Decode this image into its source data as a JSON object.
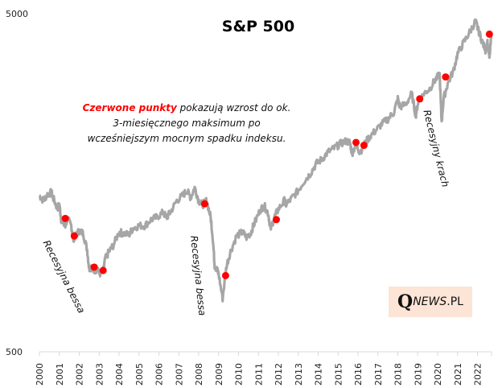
{
  "chart_data": {
    "type": "line",
    "title": "S&P 500",
    "xlabel": "",
    "ylabel": "",
    "yscale": "log",
    "ylim": [
      500,
      5000
    ],
    "y_ticks": [
      "5000",
      "500"
    ],
    "y_tick_values": [
      5000,
      500
    ],
    "xlim": [
      2000,
      2022.7
    ],
    "x_ticks": [
      "2000",
      "2001",
      "2002",
      "2003",
      "2004",
      "2005",
      "2006",
      "2007",
      "2008",
      "2009",
      "2010",
      "2011",
      "2012",
      "2013",
      "2014",
      "2015",
      "2016",
      "2017",
      "2018",
      "2019",
      "2020",
      "2021",
      "2022"
    ],
    "grid": false,
    "line_color": "#a6a6a6",
    "marker_color": "#ff0000",
    "series": [
      {
        "name": "S&P 500",
        "x": [
          2000.0,
          2000.2,
          2000.4,
          2000.6,
          2000.7,
          2000.9,
          2001.0,
          2001.1,
          2001.3,
          2001.4,
          2001.6,
          2001.7,
          2001.8,
          2002.0,
          2002.2,
          2002.4,
          2002.5,
          2002.6,
          2002.8,
          2002.9,
          2003.0,
          2003.2,
          2003.3,
          2003.5,
          2003.7,
          2004.0,
          2004.2,
          2004.5,
          2004.7,
          2005.0,
          2005.3,
          2005.6,
          2005.9,
          2006.2,
          2006.4,
          2006.6,
          2006.9,
          2007.2,
          2007.4,
          2007.6,
          2007.8,
          2008.0,
          2008.2,
          2008.4,
          2008.6,
          2008.7,
          2008.8,
          2008.9,
          2009.0,
          2009.2,
          2009.4,
          2009.6,
          2009.9,
          2010.2,
          2010.4,
          2010.6,
          2010.8,
          2011.1,
          2011.3,
          2011.5,
          2011.6,
          2011.8,
          2012.0,
          2012.3,
          2012.4,
          2012.7,
          2013.0,
          2013.3,
          2013.6,
          2013.9,
          2014.2,
          2014.5,
          2014.8,
          2015.1,
          2015.4,
          2015.6,
          2015.7,
          2015.9,
          2016.1,
          2016.3,
          2016.6,
          2016.9,
          2017.2,
          2017.5,
          2017.8,
          2018.0,
          2018.1,
          2018.4,
          2018.7,
          2018.9,
          2019.0,
          2019.3,
          2019.6,
          2019.9,
          2020.1,
          2020.2,
          2020.3,
          2020.5,
          2020.8,
          2021.0,
          2021.3,
          2021.6,
          2021.9,
          2022.0,
          2022.2,
          2022.4,
          2022.5,
          2022.6,
          2022.7
        ],
        "y": [
          1450,
          1400,
          1460,
          1480,
          1420,
          1330,
          1360,
          1230,
          1170,
          1240,
          1180,
          1080,
          1100,
          1140,
          1120,
          1000,
          880,
          900,
          850,
          900,
          850,
          860,
          940,
          990,
          1030,
          1130,
          1120,
          1110,
          1160,
          1180,
          1180,
          1230,
          1250,
          1290,
          1250,
          1300,
          1400,
          1450,
          1500,
          1430,
          1530,
          1400,
          1360,
          1400,
          1250,
          1100,
          900,
          880,
          850,
          720,
          900,
          990,
          1100,
          1130,
          1090,
          1120,
          1200,
          1320,
          1350,
          1280,
          1150,
          1250,
          1320,
          1400,
          1360,
          1430,
          1500,
          1600,
          1680,
          1800,
          1860,
          1950,
          2000,
          2060,
          2100,
          2080,
          1930,
          2060,
          1940,
          2050,
          2170,
          2260,
          2360,
          2440,
          2550,
          2800,
          2650,
          2700,
          2900,
          2500,
          2700,
          2900,
          3000,
          3200,
          3300,
          2400,
          2800,
          3100,
          3400,
          3800,
          4100,
          4400,
          4750,
          4550,
          4200,
          3900,
          4100,
          3700,
          4300
        ]
      }
    ],
    "markers": [
      {
        "x": 2001.3,
        "y": 1240
      },
      {
        "x": 2001.75,
        "y": 1100
      },
      {
        "x": 2002.75,
        "y": 890
      },
      {
        "x": 2003.2,
        "y": 870
      },
      {
        "x": 2008.3,
        "y": 1370
      },
      {
        "x": 2009.35,
        "y": 840
      },
      {
        "x": 2011.9,
        "y": 1230
      },
      {
        "x": 2015.9,
        "y": 2080
      },
      {
        "x": 2016.3,
        "y": 2040
      },
      {
        "x": 2019.1,
        "y": 2800
      },
      {
        "x": 2020.4,
        "y": 3250
      },
      {
        "x": 2022.6,
        "y": 4350
      }
    ],
    "annotations": [
      {
        "text": "Recesyjna bessa",
        "near_x": 2001.3
      },
      {
        "text": "Recesyjna bessa",
        "near_x": 2008.6
      },
      {
        "text": "Recesyjny krach",
        "near_x": 2019.3
      }
    ]
  },
  "note": {
    "red_part": "Czerwone punkty",
    "line1_rest": " pokazują wzrost do ok.",
    "line2": "3-miesięcznego maksimum po",
    "line3": "wcześniejszym mocnym spadku indeksu."
  },
  "logo": {
    "q": "Q",
    "news": "NEWS",
    "pl": ".PL"
  }
}
